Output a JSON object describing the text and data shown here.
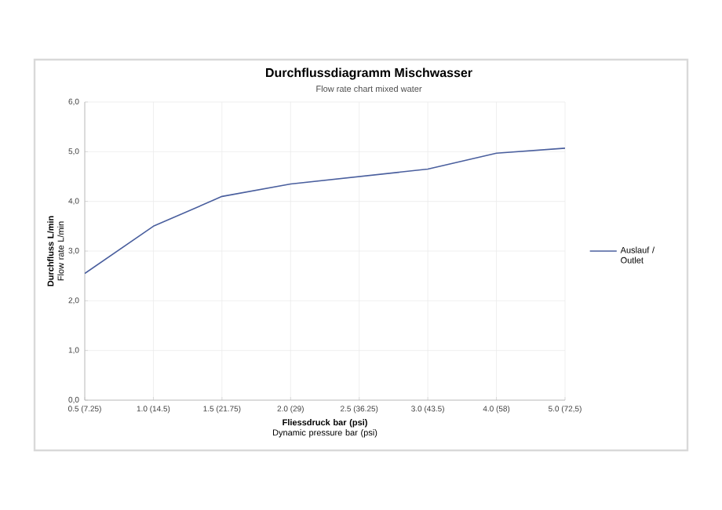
{
  "chart_data": {
    "type": "line",
    "title": "Durchflussdiagramm Mischwasser",
    "subtitle": "Flow rate chart mixed water",
    "xlabel": "**Fliessdruck bar (psi)** Dynamic pressure bar (psi)",
    "ylabel": "**Durchfluss L/min** Flow rate L/min",
    "categories": [
      "0.5 (7.25)",
      "1.0 (14.5)",
      "1.5 (21.75)",
      "2.0 (29)",
      "2.5 (36.25)",
      "3.0 (43.5)",
      "4.0 (58)",
      "5.0 (72,5)"
    ],
    "series": [
      {
        "name": "Auslauf / Outlet",
        "color": "#4a5f9e",
        "values": [
          2.55,
          3.5,
          4.1,
          4.35,
          4.5,
          4.65,
          4.97,
          5.07
        ]
      }
    ],
    "ylim": [
      0,
      6
    ],
    "yticks": [
      {
        "value": 0,
        "label": "0,0"
      },
      {
        "value": 1,
        "label": "1,0"
      },
      {
        "value": 2,
        "label": "2,0"
      },
      {
        "value": 3,
        "label": "3,0"
      },
      {
        "value": 4,
        "label": "4,0"
      },
      {
        "value": 5,
        "label": "5,0"
      },
      {
        "value": 6,
        "label": "6,0"
      }
    ],
    "grid": true,
    "legend": "right",
    "marker": "none",
    "line_style": "solid"
  }
}
